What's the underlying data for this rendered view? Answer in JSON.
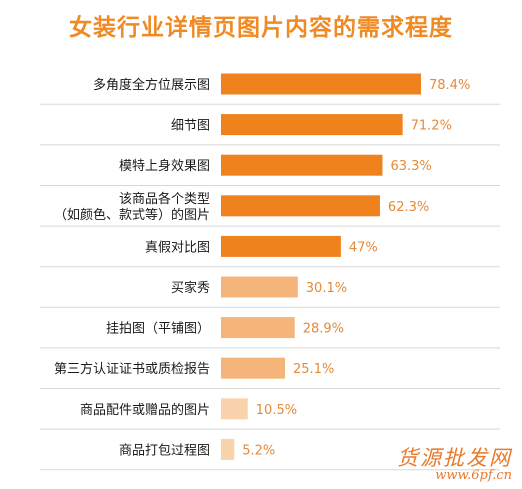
{
  "chart_data": {
    "type": "bar",
    "orientation": "horizontal",
    "title": "女装行业详情页图片内容的需求程度",
    "categories": [
      [
        "多角度全方位展示图"
      ],
      [
        "细节图"
      ],
      [
        "模特上身效果图"
      ],
      [
        "该商品各个类型",
        "（如颜色、款式等）的图片"
      ],
      [
        "真假对比图"
      ],
      [
        "买家秀"
      ],
      [
        "挂拍图（平铺图）"
      ],
      [
        "第三方认证证书或质检报告"
      ],
      [
        "商品配件或赠品的图片"
      ],
      [
        "商品打包过程图"
      ]
    ],
    "values": [
      78.4,
      71.2,
      63.3,
      62.3,
      47,
      30.1,
      28.9,
      25.1,
      10.5,
      5.2
    ],
    "value_labels": [
      "78.4%",
      "71.2%",
      "63.3%",
      "62.3%",
      "47%",
      "30.1%",
      "28.9%",
      "25.1%",
      "10.5%",
      "5.2%"
    ],
    "xlim": [
      0,
      100
    ],
    "grid": false,
    "legend": "none",
    "colors": {
      "title": "#f08a24",
      "value_text": "#e58a3a",
      "bar_dark": "#f0821e",
      "bar_mid": "#f5b57a",
      "bar_light": "#f9d3ac",
      "separator": "#d8d8d8"
    },
    "bar_color_index": [
      "dark",
      "dark",
      "dark",
      "dark",
      "dark",
      "mid",
      "mid",
      "mid",
      "light",
      "light"
    ]
  },
  "watermark": {
    "text_cn": "货源批发网",
    "url": "www.6pf.cn"
  }
}
